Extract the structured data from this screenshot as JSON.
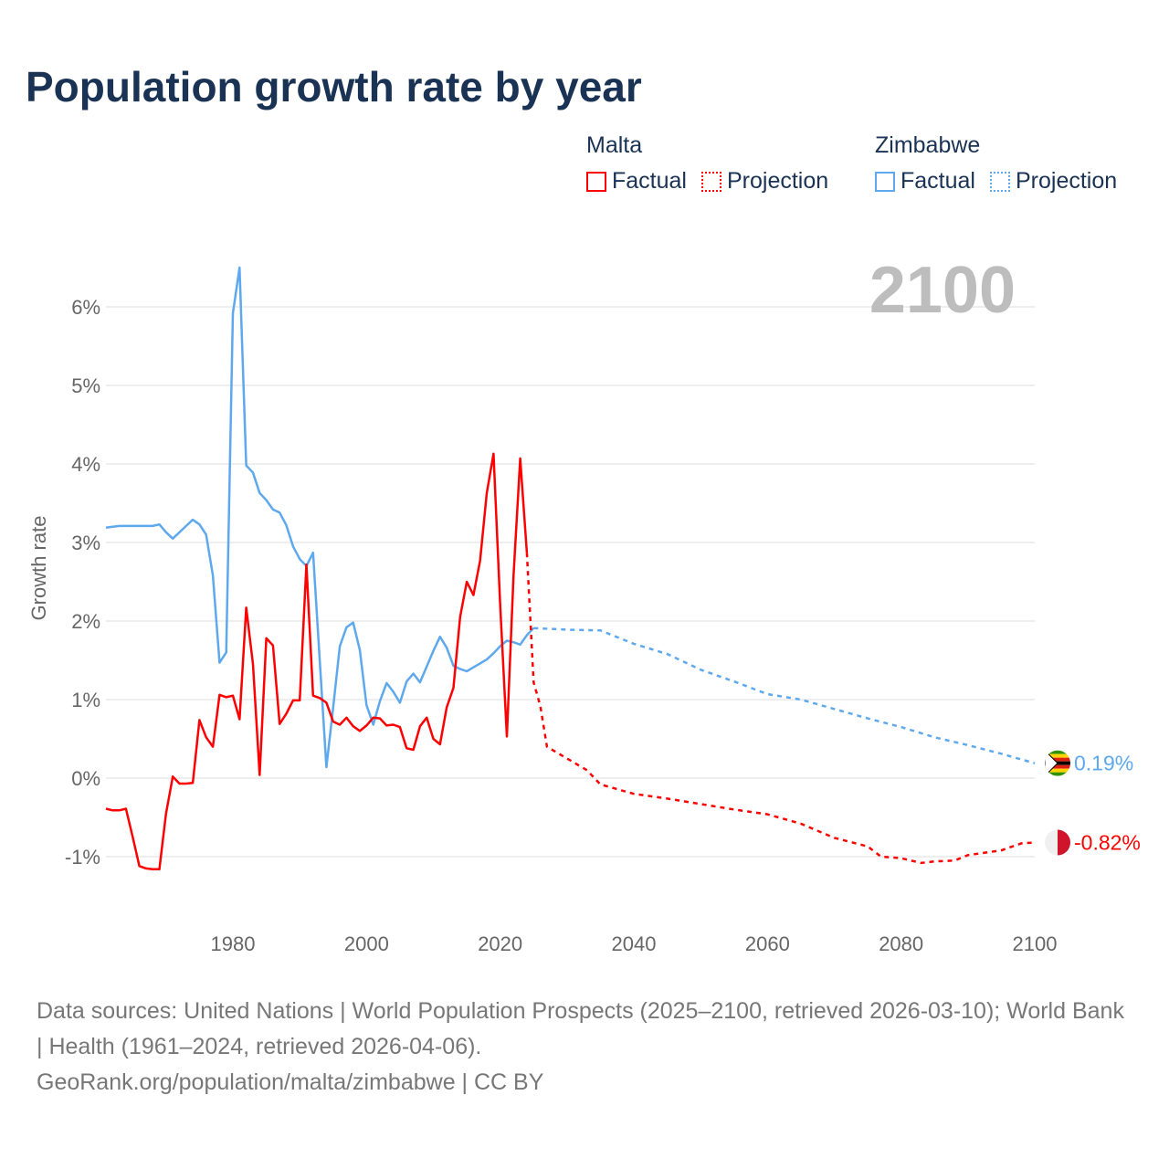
{
  "title": "Population growth rate by year",
  "legend": {
    "groups": [
      {
        "name": "Malta",
        "factual": "Factual",
        "projection": "Projection",
        "color": "#ff0000"
      },
      {
        "name": "Zimbabwe",
        "factual": "Factual",
        "projection": "Projection",
        "color": "#5ea8ee"
      }
    ]
  },
  "footer": {
    "sources": "Data sources: United Nations | World Population Prospects (2025–2100, retrieved 2026-03-10); World Bank | Health (1961–2024, retrieved 2026-04-06).",
    "credit": "GeoRank.org/population/malta/zimbabwe | CC BY"
  },
  "chart_data": {
    "type": "line",
    "title": "Population growth rate by year",
    "ylabel": "Growth rate",
    "xlabel": "",
    "current_year_label": "2100",
    "xlim": [
      1961,
      2100
    ],
    "ylim": [
      -1.65,
      6.7
    ],
    "x_ticks": [
      1980,
      2000,
      2020,
      2040,
      2060,
      2080,
      2100
    ],
    "y_ticks": [
      -1,
      0,
      1,
      2,
      3,
      4,
      5,
      6
    ],
    "y_tick_labels": [
      "-1%",
      "0%",
      "1%",
      "2%",
      "3%",
      "4%",
      "5%",
      "6%"
    ],
    "grid": true,
    "legend_position": "top-right",
    "series": [
      {
        "name": "Zimbabwe",
        "color": "#5ea8ee",
        "end_label": "0.19%",
        "flag": "zimbabwe-flag",
        "factual": {
          "x": [
            1961,
            1962,
            1963,
            1964,
            1965,
            1966,
            1967,
            1968,
            1969,
            1970,
            1971,
            1972,
            1973,
            1974,
            1975,
            1976,
            1977,
            1978,
            1979,
            1980,
            1981,
            1982,
            1983,
            1984,
            1985,
            1986,
            1987,
            1988,
            1989,
            1990,
            1991,
            1992,
            1993,
            1994,
            1995,
            1996,
            1997,
            1998,
            1999,
            2000,
            2001,
            2002,
            2003,
            2004,
            2005,
            2006,
            2007,
            2008,
            2009,
            2010,
            2011,
            2012,
            2013,
            2014,
            2015,
            2016,
            2017,
            2018,
            2019,
            2020,
            2021,
            2022,
            2023,
            2024,
            2025
          ],
          "y": [
            3.19,
            3.2,
            3.21,
            3.21,
            3.21,
            3.21,
            3.21,
            3.21,
            3.23,
            3.13,
            3.05,
            3.13,
            3.21,
            3.29,
            3.23,
            3.1,
            2.58,
            1.47,
            1.6,
            5.92,
            6.5,
            3.98,
            3.89,
            3.63,
            3.54,
            3.42,
            3.38,
            3.22,
            2.95,
            2.79,
            2.7,
            2.87,
            1.5,
            0.14,
            0.9,
            1.68,
            1.92,
            1.98,
            1.63,
            0.93,
            0.68,
            0.98,
            1.21,
            1.1,
            0.96,
            1.23,
            1.33,
            1.22,
            1.42,
            1.62,
            1.8,
            1.66,
            1.43,
            1.39,
            1.36,
            1.41,
            1.46,
            1.51,
            1.59,
            1.68,
            1.75,
            1.73,
            1.7,
            1.82,
            1.91
          ]
        },
        "projection": {
          "x": [
            2025,
            2030,
            2035,
            2040,
            2045,
            2050,
            2055,
            2060,
            2065,
            2070,
            2075,
            2080,
            2085,
            2090,
            2095,
            2100
          ],
          "y": [
            1.91,
            1.89,
            1.88,
            1.71,
            1.58,
            1.38,
            1.23,
            1.07,
            1.0,
            0.88,
            0.76,
            0.65,
            0.52,
            0.42,
            0.31,
            0.19
          ]
        }
      },
      {
        "name": "Malta",
        "color": "#ff0000",
        "end_label": "-0.82%",
        "flag": "malta-flag",
        "factual": {
          "x": [
            1961,
            1962,
            1963,
            1964,
            1965,
            1966,
            1967,
            1968,
            1969,
            1970,
            1971,
            1972,
            1973,
            1974,
            1975,
            1976,
            1977,
            1978,
            1979,
            1980,
            1981,
            1982,
            1983,
            1984,
            1985,
            1986,
            1987,
            1988,
            1989,
            1990,
            1991,
            1992,
            1993,
            1994,
            1995,
            1996,
            1997,
            1998,
            1999,
            2000,
            2001,
            2002,
            2003,
            2004,
            2005,
            2006,
            2007,
            2008,
            2009,
            2010,
            2011,
            2012,
            2013,
            2014,
            2015,
            2016,
            2017,
            2018,
            2019,
            2020,
            2021,
            2022,
            2023,
            2024
          ],
          "y": [
            -0.39,
            -0.41,
            -0.41,
            -0.39,
            -0.75,
            -1.12,
            -1.15,
            -1.16,
            -1.16,
            -0.45,
            0.02,
            -0.07,
            -0.07,
            -0.06,
            0.74,
            0.52,
            0.4,
            1.06,
            1.03,
            1.05,
            0.75,
            2.17,
            1.45,
            0.04,
            1.78,
            1.69,
            0.69,
            0.82,
            0.99,
            0.99,
            2.72,
            1.05,
            1.02,
            0.96,
            0.72,
            0.68,
            0.77,
            0.66,
            0.6,
            0.67,
            0.77,
            0.76,
            0.67,
            0.68,
            0.65,
            0.38,
            0.36,
            0.66,
            0.77,
            0.5,
            0.43,
            0.9,
            1.15,
            2.05,
            2.5,
            2.33,
            2.77,
            3.63,
            4.13,
            2.2,
            0.53,
            2.58,
            4.07,
            2.87
          ]
        },
        "projection": {
          "x": [
            2024,
            2025,
            2026,
            2027,
            2028,
            2030,
            2033,
            2035,
            2040,
            2045,
            2050,
            2055,
            2060,
            2065,
            2070,
            2075,
            2077,
            2080,
            2083,
            2085,
            2088,
            2090,
            2095,
            2098,
            2100
          ],
          "y": [
            2.87,
            1.22,
            0.92,
            0.4,
            0.35,
            0.25,
            0.1,
            -0.08,
            -0.2,
            -0.26,
            -0.33,
            -0.4,
            -0.46,
            -0.58,
            -0.76,
            -0.87,
            -1.0,
            -1.02,
            -1.08,
            -1.06,
            -1.05,
            -0.98,
            -0.92,
            -0.83,
            -0.82
          ]
        }
      }
    ]
  }
}
